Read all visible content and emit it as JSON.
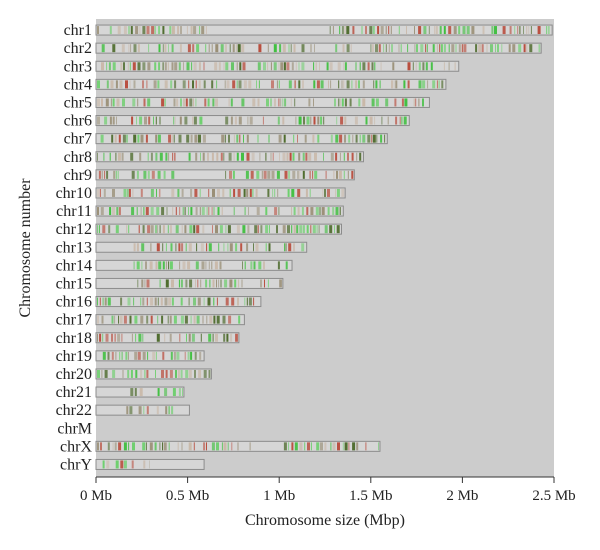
{
  "chart_data": {
    "type": "bar",
    "orientation": "horizontal",
    "xlabel": "Chromosome size (Mbp)",
    "ylabel": "Chromosome number",
    "xlim": [
      0,
      2.5
    ],
    "xticks": [
      0,
      0.5,
      1,
      1.5,
      2,
      2.5
    ],
    "xtick_labels": [
      "0 Mb",
      "0.5 Mb",
      "1 Mb",
      "1.5 Mb",
      "2 Mb",
      "2.5 Mb"
    ],
    "grid": false,
    "colors": {
      "plot_background": "#cccccc",
      "bar_fill": "#d6d6d6",
      "bar_outline": "#8c8c8c",
      "band_green": "#3fbf3f",
      "band_red": "#b84a3a",
      "band_dark": "#4e6b2d"
    },
    "categories": [
      "chr1",
      "chr2",
      "chr3",
      "chr4",
      "chr5",
      "chr6",
      "chr7",
      "chr8",
      "chr9",
      "chr10",
      "chr11",
      "chr12",
      "chr13",
      "chr14",
      "chr15",
      "chr16",
      "chr17",
      "chr18",
      "chr19",
      "chr20",
      "chr21",
      "chr22",
      "chrM",
      "chrX",
      "chrY"
    ],
    "values": [
      2.49,
      2.43,
      1.98,
      1.91,
      1.82,
      1.71,
      1.59,
      1.46,
      1.41,
      1.36,
      1.35,
      1.34,
      1.15,
      1.07,
      1.02,
      0.9,
      0.81,
      0.78,
      0.59,
      0.63,
      0.48,
      0.51,
      0.0,
      1.55,
      0.59
    ],
    "annotated_spans": [
      [
        [
          0,
          0.62
        ],
        [
          1.27,
          2.49
        ]
      ],
      [
        [
          0,
          1.2
        ],
        [
          1.3,
          2.43
        ]
      ],
      [
        [
          0,
          1.98
        ]
      ],
      [
        [
          0,
          0.9
        ],
        [
          0.95,
          1.91
        ]
      ],
      [
        [
          0,
          1.82
        ]
      ],
      [
        [
          0,
          0.6
        ],
        [
          0.7,
          1.71
        ]
      ],
      [
        [
          0,
          1.59
        ]
      ],
      [
        [
          0,
          0.44
        ],
        [
          0.5,
          1.46
        ]
      ],
      [
        [
          0,
          0.45
        ],
        [
          0.67,
          1.41
        ]
      ],
      [
        [
          0,
          1.36
        ]
      ],
      [
        [
          0,
          1.35
        ]
      ],
      [
        [
          0,
          1.34
        ]
      ],
      [
        [
          0.2,
          1.15
        ]
      ],
      [
        [
          0.2,
          1.07
        ]
      ],
      [
        [
          0.22,
          1.02
        ]
      ],
      [
        [
          0,
          0.48
        ],
        [
          0.5,
          0.9
        ]
      ],
      [
        [
          0,
          0.81
        ]
      ],
      [
        [
          0,
          0.78
        ]
      ],
      [
        [
          0,
          0.59
        ]
      ],
      [
        [
          0,
          0.63
        ]
      ],
      [
        [
          0.15,
          0.48
        ]
      ],
      [
        [
          0.16,
          0.51
        ]
      ],
      [],
      [
        [
          0,
          0.85
        ],
        [
          1.02,
          1.55
        ]
      ],
      [
        [
          0,
          0.3
        ]
      ]
    ]
  }
}
